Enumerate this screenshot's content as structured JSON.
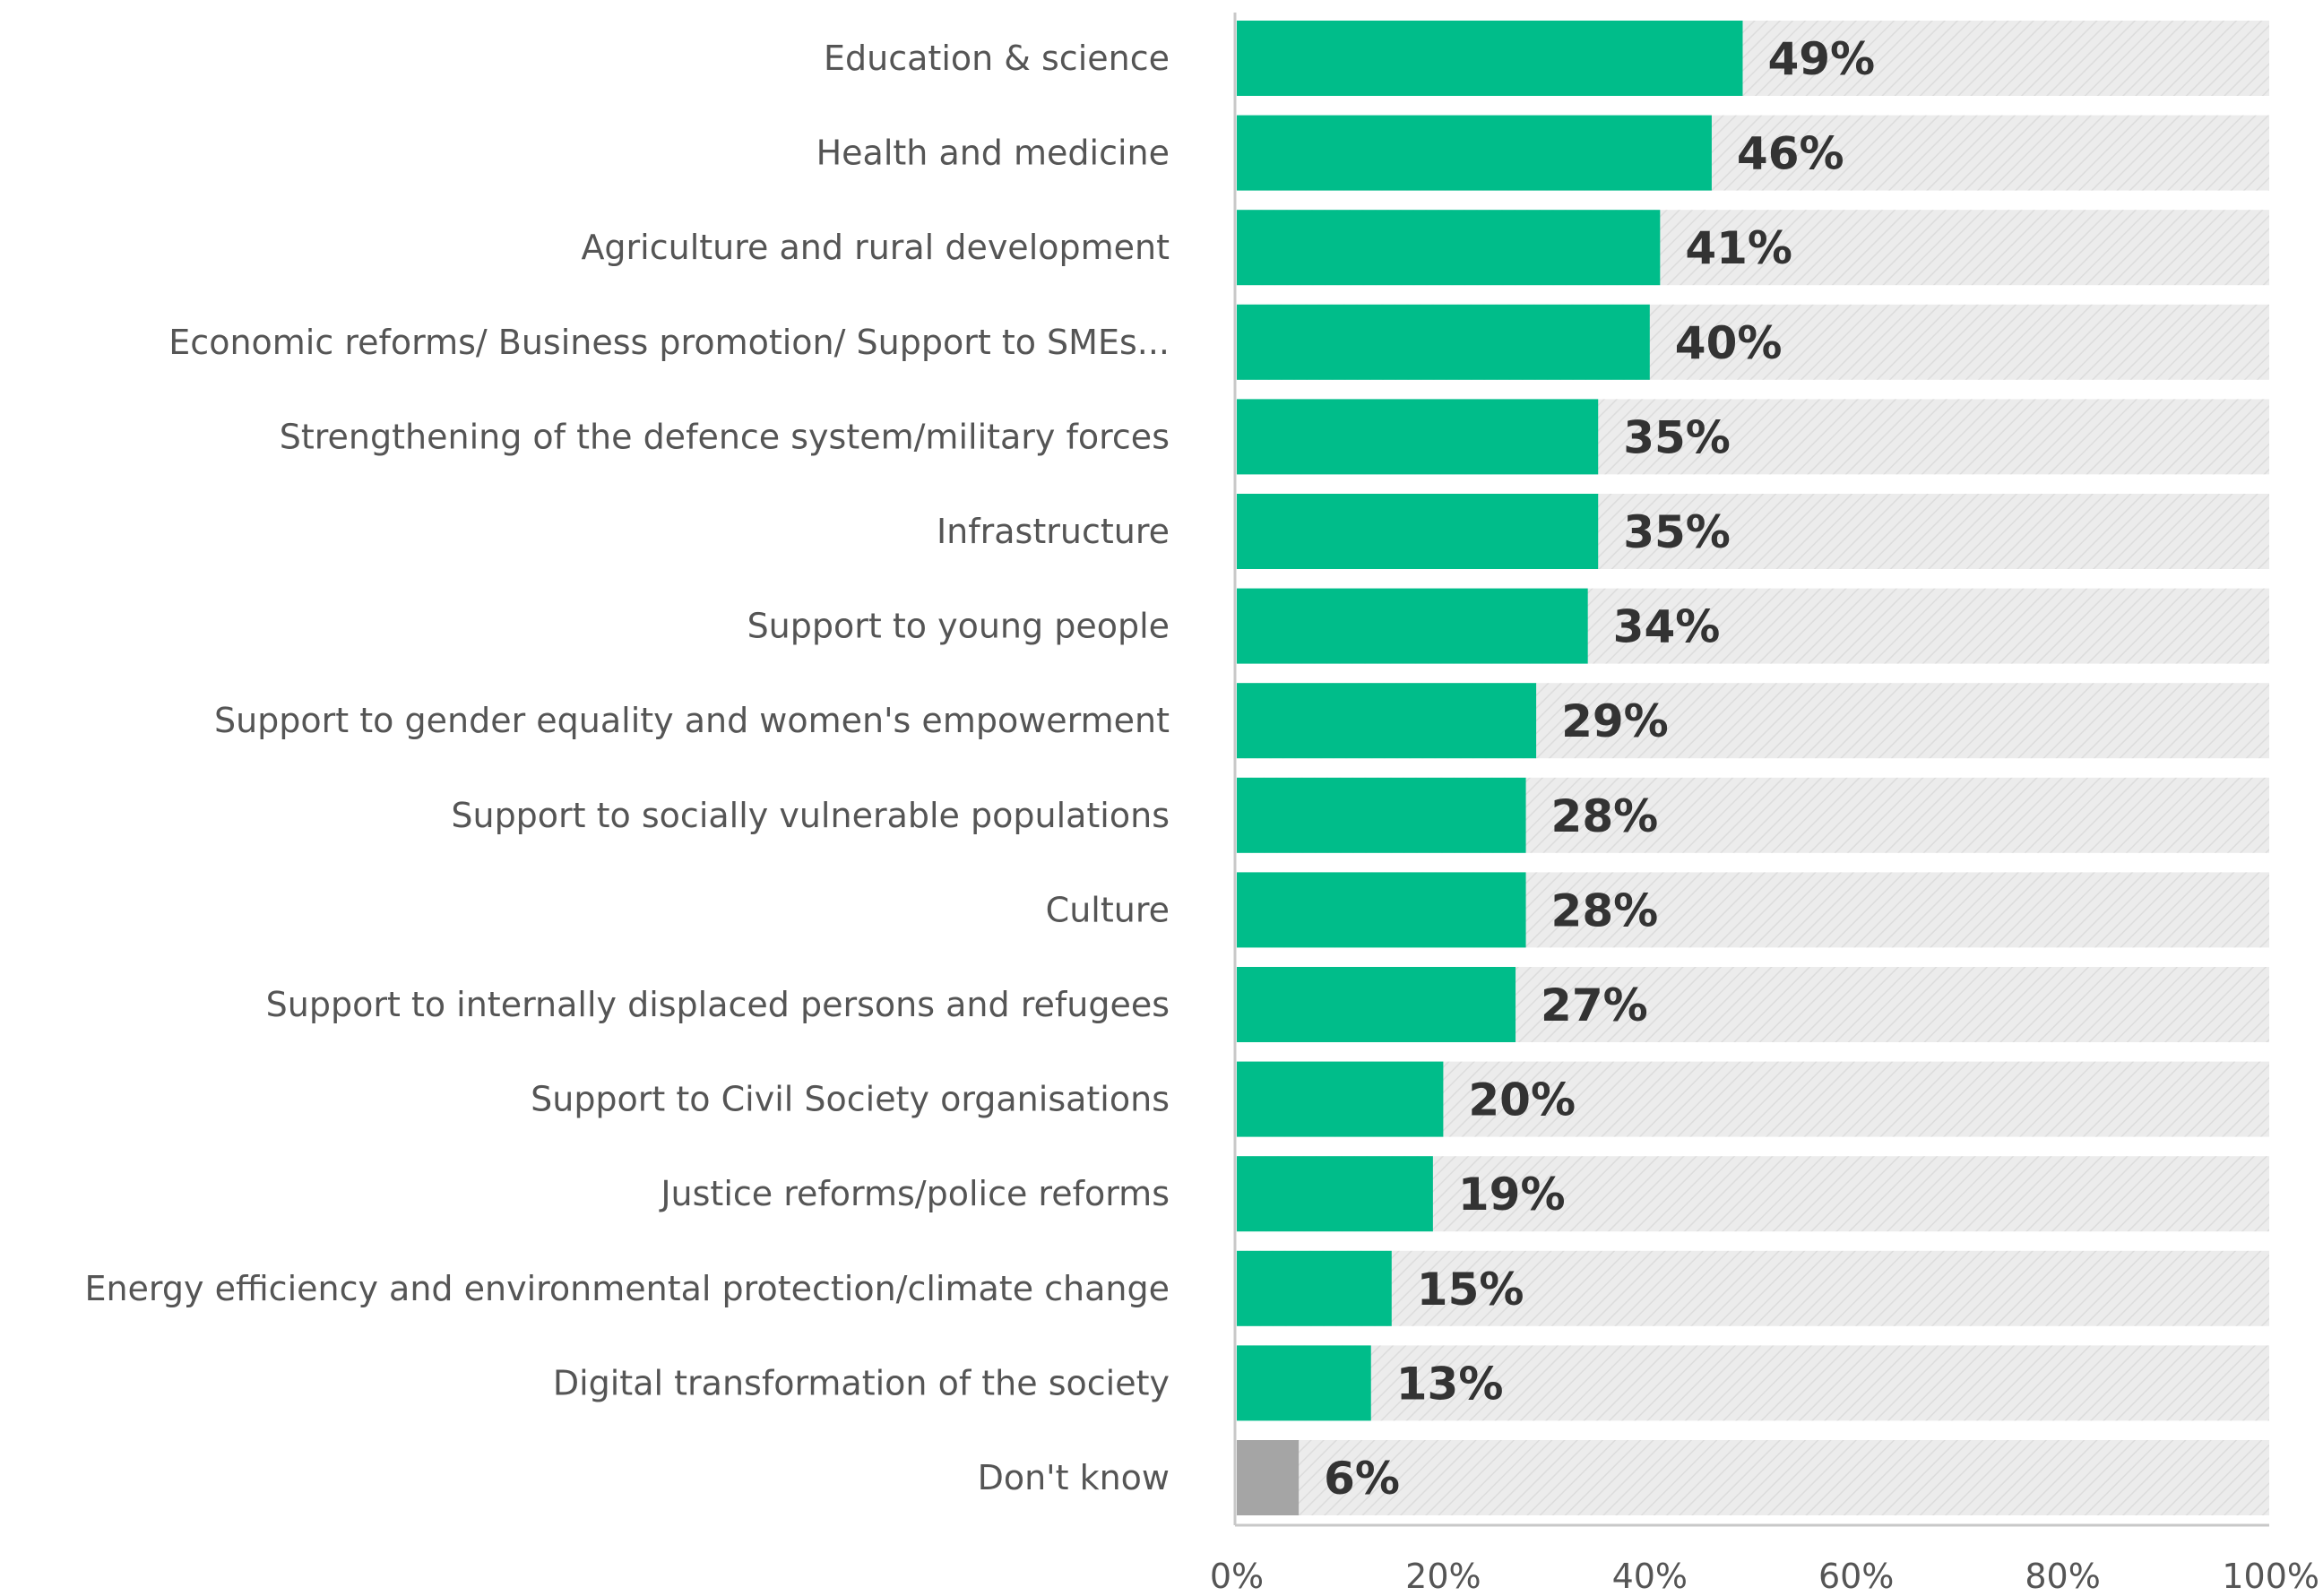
{
  "chart_data": {
    "type": "bar",
    "orientation": "horizontal",
    "stacked_background": true,
    "categories": [
      "Education & science",
      "Health and medicine",
      "Agriculture and rural development",
      "Economic reforms/ Business promotion/ Support to SMEs...",
      "Strengthening of the defence system/military forces",
      "Infrastructure",
      "Support to young people",
      "Support to gender equality and women's empowerment",
      "Support to socially vulnerable populations",
      "Culture",
      "Support to internally displaced persons and refugees",
      "Support to Civil Society organisations",
      "Justice reforms/police reforms",
      "Energy efficiency and environmental protection/climate change",
      "Digital transformation of the society",
      "Don't know"
    ],
    "values": [
      49,
      46,
      41,
      40,
      35,
      35,
      34,
      29,
      28,
      28,
      27,
      20,
      19,
      15,
      13,
      6
    ],
    "value_labels": [
      "49%",
      "46%",
      "41%",
      "40%",
      "35%",
      "35%",
      "34%",
      "29%",
      "28%",
      "28%",
      "27%",
      "20%",
      "19%",
      "15%",
      "13%",
      "6%"
    ],
    "x_ticks": [
      "0%",
      "20%",
      "40%",
      "60%",
      "80%",
      "100%"
    ],
    "xlim": [
      0,
      100
    ],
    "grid": false,
    "legend": "none",
    "colors": {
      "bar": "#00bd8a",
      "dont_know_bar": "#a5a5a5",
      "remainder": "#ececec",
      "remainder_hatch": "#dcdcdc",
      "axis": "#c8c8c8"
    }
  }
}
